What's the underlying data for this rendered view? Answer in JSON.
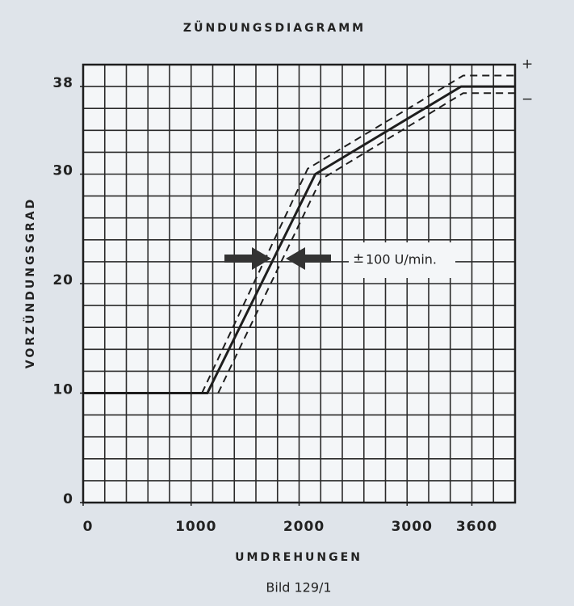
{
  "chart_data": {
    "type": "line",
    "title": "ZÜNDUNGSDIAGRAMM",
    "xlabel": "UMDREHUNGEN",
    "ylabel": "VORZÜNDUNGSGRAD",
    "caption": "Bild 129/1",
    "xlim": [
      0,
      4000
    ],
    "ylim": [
      0,
      40
    ],
    "xticks": [
      0,
      1000,
      2000,
      3000,
      3600
    ],
    "yticks": [
      0,
      10,
      20,
      30,
      38
    ],
    "xgrid": 200,
    "ygrid": 2,
    "series": [
      {
        "color": "#1e1e1e",
        "dash": false,
        "x": [
          0,
          1150,
          2150,
          3500,
          4000
        ],
        "values": [
          10,
          10,
          30,
          38,
          38
        ]
      },
      {
        "name": "+",
        "color": "#1e1e1e",
        "dash": true,
        "x": [
          1100,
          2080,
          3520,
          4000
        ],
        "values": [
          10,
          30.5,
          39,
          39
        ]
      },
      {
        "name": "−",
        "color": "#1e1e1e",
        "dash": true,
        "x": [
          1250,
          2200,
          3520,
          4000
        ],
        "values": [
          10,
          29.5,
          37.4,
          37.4
        ]
      }
    ],
    "annotation": {
      "sign": "±",
      "text": "100 U/min."
    }
  }
}
